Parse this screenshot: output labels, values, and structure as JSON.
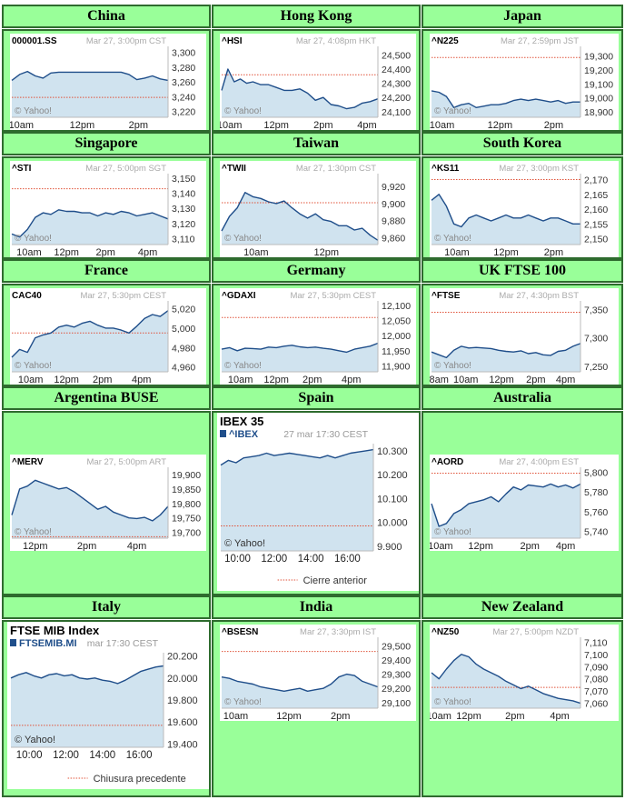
{
  "charts": [
    {
      "title": "China",
      "symbol": "000001.SS",
      "stamp": "Mar 27, 3:00pm CST",
      "ticks": [
        "3,300",
        "3,280",
        "3,260",
        "3,240",
        "3,220"
      ],
      "tickv": [
        3300,
        3280,
        3260,
        3240,
        3220
      ],
      "ylim": [
        3212,
        3308
      ],
      "prev": 3239,
      "xlabels": [
        "10am",
        "12pm",
        "2pm"
      ],
      "xpos": [
        0.06,
        0.45,
        0.81
      ],
      "chart_data": {
        "type": "line",
        "x": [
          0,
          0.05,
          0.1,
          0.15,
          0.2,
          0.25,
          0.3,
          0.35,
          0.4,
          0.45,
          0.5,
          0.55,
          0.6,
          0.65,
          0.7,
          0.75,
          0.8,
          0.85,
          0.9,
          0.95,
          1
        ],
        "values": [
          3262,
          3270,
          3274,
          3268,
          3265,
          3272,
          3273,
          3273,
          3273,
          3273,
          3273,
          3273,
          3273,
          3273,
          3273,
          3270,
          3263,
          3265,
          3268,
          3264,
          3262
        ]
      }
    },
    {
      "title": "Hong Kong",
      "symbol": "^HSI",
      "stamp": "Mar 27, 4:08pm HKT",
      "ticks": [
        "24,500",
        "24,400",
        "24,300",
        "24,200",
        "24,100"
      ],
      "tickv": [
        24500,
        24400,
        24300,
        24200,
        24100
      ],
      "ylim": [
        24060,
        24560
      ],
      "prev": 24360,
      "xlabels": [
        "10am",
        "12pm",
        "2pm",
        "4pm"
      ],
      "xpos": [
        0.05,
        0.35,
        0.65,
        0.93
      ],
      "chart_data": {
        "type": "line",
        "x": [
          0,
          0.04,
          0.08,
          0.12,
          0.16,
          0.2,
          0.25,
          0.3,
          0.35,
          0.4,
          0.45,
          0.5,
          0.55,
          0.6,
          0.65,
          0.7,
          0.75,
          0.8,
          0.85,
          0.9,
          0.95,
          1
        ],
        "values": [
          24250,
          24400,
          24310,
          24330,
          24300,
          24310,
          24290,
          24290,
          24270,
          24250,
          24250,
          24260,
          24230,
          24180,
          24200,
          24150,
          24140,
          24120,
          24130,
          24160,
          24170,
          24190
        ]
      }
    },
    {
      "title": "Japan",
      "symbol": "^N225",
      "stamp": "Mar 27, 2:59pm JST",
      "ticks": [
        "19,300",
        "19,200",
        "19,100",
        "19,000",
        "18,900"
      ],
      "tickv": [
        19300,
        19200,
        19100,
        19000,
        18900
      ],
      "ylim": [
        18860,
        19370
      ],
      "prev": 19290,
      "xlabels": [
        "10am",
        "12pm",
        "2pm"
      ],
      "xpos": [
        0.07,
        0.46,
        0.82
      ],
      "chart_data": {
        "type": "line",
        "x": [
          0,
          0.05,
          0.1,
          0.15,
          0.2,
          0.25,
          0.3,
          0.35,
          0.4,
          0.45,
          0.5,
          0.55,
          0.6,
          0.65,
          0.7,
          0.75,
          0.8,
          0.85,
          0.9,
          0.95,
          1
        ],
        "values": [
          19050,
          19040,
          19010,
          18930,
          18950,
          18960,
          18930,
          18940,
          18950,
          18950,
          18960,
          18980,
          18990,
          18980,
          18990,
          18980,
          18970,
          18980,
          18960,
          18970,
          18970
        ]
      }
    },
    {
      "title": "Singapore",
      "symbol": "^STI",
      "stamp": "Mar 27, 5:00pm SGT",
      "ticks": [
        "3,150",
        "3,140",
        "3,130",
        "3,120",
        "3,110"
      ],
      "tickv": [
        3150,
        3140,
        3130,
        3120,
        3110
      ],
      "ylim": [
        3106,
        3153
      ],
      "prev": 3143,
      "xlabels": [
        "10am",
        "12pm",
        "2pm",
        "4pm"
      ],
      "xpos": [
        0.11,
        0.35,
        0.6,
        0.87
      ],
      "chart_data": {
        "type": "line",
        "x": [
          0,
          0.05,
          0.1,
          0.15,
          0.2,
          0.25,
          0.3,
          0.35,
          0.4,
          0.45,
          0.5,
          0.55,
          0.6,
          0.65,
          0.7,
          0.75,
          0.8,
          0.85,
          0.9,
          0.95,
          1
        ],
        "values": [
          3113,
          3111,
          3116,
          3124,
          3127,
          3126,
          3129,
          3128,
          3128,
          3127,
          3127,
          3125,
          3127,
          3126,
          3128,
          3127,
          3125,
          3126,
          3127,
          3125,
          3123
        ]
      }
    },
    {
      "title": "Taiwan",
      "symbol": "^TWII",
      "stamp": "Mar 27, 1:30pm CST",
      "ticks": [
        "9,920",
        "9,900",
        "9,880",
        "9,860"
      ],
      "tickv": [
        9920,
        9900,
        9880,
        9860
      ],
      "ylim": [
        9852,
        9935
      ],
      "prev": 9901,
      "xlabels": [
        "10am",
        "12pm"
      ],
      "xpos": [
        0.22,
        0.67
      ],
      "chart_data": {
        "type": "line",
        "x": [
          0,
          0.05,
          0.1,
          0.15,
          0.2,
          0.25,
          0.3,
          0.35,
          0.4,
          0.45,
          0.5,
          0.55,
          0.6,
          0.65,
          0.7,
          0.75,
          0.8,
          0.85,
          0.9,
          0.95,
          1
        ],
        "values": [
          9868,
          9885,
          9895,
          9913,
          9908,
          9906,
          9902,
          9900,
          9903,
          9895,
          9888,
          9883,
          9888,
          9881,
          9879,
          9874,
          9874,
          9869,
          9871,
          9863,
          9857
        ]
      }
    },
    {
      "title": "South Korea",
      "symbol": "^KS11",
      "stamp": "Mar 27, 3:00pm KST",
      "ticks": [
        "2,170",
        "2,165",
        "2,160",
        "2,155",
        "2,150"
      ],
      "tickv": [
        2170,
        2165,
        2160,
        2155,
        2150
      ],
      "ylim": [
        2148,
        2172
      ],
      "prev": 2170,
      "xlabels": [
        "10am",
        "12pm",
        "2pm"
      ],
      "xpos": [
        0.17,
        0.5,
        0.82
      ],
      "chart_data": {
        "type": "line",
        "x": [
          0,
          0.05,
          0.1,
          0.15,
          0.2,
          0.25,
          0.3,
          0.35,
          0.4,
          0.45,
          0.5,
          0.55,
          0.6,
          0.65,
          0.7,
          0.75,
          0.8,
          0.85,
          0.9,
          0.95,
          1
        ],
        "values": [
          2163,
          2165,
          2161,
          2155,
          2154,
          2157,
          2158,
          2157,
          2156,
          2157,
          2158,
          2157,
          2157,
          2158,
          2157,
          2156,
          2157,
          2157,
          2156,
          2155,
          2155
        ]
      }
    },
    {
      "title": "France",
      "symbol": "CAC40",
      "stamp": "Mar 27, 5:30pm CEST",
      "ticks": [
        "5,020",
        "5,000",
        "4,980",
        "4,960"
      ],
      "tickv": [
        5020,
        5000,
        4980,
        4960
      ],
      "ylim": [
        4955,
        5028
      ],
      "prev": 4995,
      "xlabels": [
        "10am",
        "12pm",
        "2pm",
        "4pm"
      ],
      "xpos": [
        0.12,
        0.35,
        0.58,
        0.83
      ],
      "chart_data": {
        "type": "line",
        "x": [
          0,
          0.05,
          0.1,
          0.15,
          0.2,
          0.25,
          0.3,
          0.35,
          0.4,
          0.45,
          0.5,
          0.55,
          0.6,
          0.65,
          0.7,
          0.75,
          0.8,
          0.85,
          0.9,
          0.95,
          1
        ],
        "values": [
          4970,
          4978,
          4975,
          4990,
          4993,
          4995,
          5001,
          5003,
          5001,
          5005,
          5007,
          5003,
          5000,
          5000,
          4998,
          4995,
          5002,
          5010,
          5014,
          5012,
          5018
        ]
      }
    },
    {
      "title": "Germany",
      "symbol": "^GDAXI",
      "stamp": "Mar 27, 5:30pm CEST",
      "ticks": [
        "12,100",
        "12,050",
        "12,000",
        "11,950",
        "11,900"
      ],
      "tickv": [
        12100,
        12050,
        12000,
        11950,
        11900
      ],
      "ylim": [
        11880,
        12115
      ],
      "prev": 12060,
      "xlabels": [
        "10am",
        "12pm",
        "2pm",
        "4pm"
      ],
      "xpos": [
        0.12,
        0.35,
        0.58,
        0.83
      ],
      "chart_data": {
        "type": "line",
        "x": [
          0,
          0.05,
          0.1,
          0.15,
          0.2,
          0.25,
          0.3,
          0.35,
          0.4,
          0.45,
          0.5,
          0.55,
          0.6,
          0.65,
          0.7,
          0.75,
          0.8,
          0.85,
          0.9,
          0.95,
          1
        ],
        "values": [
          11955,
          11960,
          11950,
          11958,
          11957,
          11955,
          11962,
          11960,
          11965,
          11968,
          11963,
          11960,
          11962,
          11958,
          11955,
          11950,
          11945,
          11955,
          11960,
          11965,
          11975
        ]
      }
    },
    {
      "title": "UK FTSE 100",
      "symbol": "^FTSE",
      "stamp": "Mar 27, 4:30pm BST",
      "ticks": [
        "7,350",
        "7,300",
        "7,250"
      ],
      "tickv": [
        7350,
        7300,
        7250
      ],
      "ylim": [
        7240,
        7365
      ],
      "prev": 7345,
      "xlabels": [
        "8am",
        "10am",
        "12pm",
        "2pm",
        "4pm"
      ],
      "xpos": [
        0.05,
        0.23,
        0.47,
        0.7,
        0.9
      ],
      "chart_data": {
        "type": "line",
        "x": [
          0,
          0.05,
          0.1,
          0.15,
          0.2,
          0.25,
          0.3,
          0.35,
          0.4,
          0.45,
          0.5,
          0.55,
          0.6,
          0.65,
          0.7,
          0.75,
          0.8,
          0.85,
          0.9,
          0.95,
          1
        ],
        "values": [
          7275,
          7270,
          7265,
          7278,
          7285,
          7282,
          7283,
          7282,
          7281,
          7278,
          7276,
          7275,
          7277,
          7272,
          7274,
          7270,
          7269,
          7276,
          7278,
          7285,
          7290
        ]
      }
    },
    {
      "title": "Argentina BUSE",
      "symbol": "^MERV",
      "stamp": "Mar 27, 5:00pm ART",
      "ticks": [
        "19,900",
        "19,850",
        "19,800",
        "19,750",
        "19,700"
      ],
      "tickv": [
        19900,
        19850,
        19800,
        19750,
        19700
      ],
      "ylim": [
        19680,
        19925
      ],
      "prev": 19685,
      "xlabels": [
        "12pm",
        "2pm",
        "4pm"
      ],
      "xpos": [
        0.15,
        0.48,
        0.8
      ],
      "chart_data": {
        "type": "line",
        "x": [
          0,
          0.05,
          0.1,
          0.15,
          0.2,
          0.25,
          0.3,
          0.35,
          0.4,
          0.45,
          0.5,
          0.55,
          0.6,
          0.65,
          0.7,
          0.75,
          0.8,
          0.85,
          0.9,
          0.95,
          1
        ],
        "values": [
          19760,
          19850,
          19860,
          19880,
          19870,
          19860,
          19850,
          19855,
          19840,
          19820,
          19800,
          19780,
          19790,
          19770,
          19760,
          19750,
          19748,
          19752,
          19740,
          19760,
          19790
        ]
      }
    },
    {
      "title": "Spain",
      "symbol": "IBEX 35",
      "ticker": "^IBEX",
      "stamp": "27 mar 17:30 CEST",
      "ticks": [
        "10.300",
        "10.200",
        "10.100",
        "10.000",
        "9.900"
      ],
      "tickv": [
        10300,
        10200,
        10100,
        10000,
        9900
      ],
      "ylim": [
        9880,
        10330
      ],
      "prev": 9985,
      "xlabels": [
        "10:00",
        "12:00",
        "14:00",
        "16:00"
      ],
      "xpos": [
        0.11,
        0.35,
        0.59,
        0.83
      ],
      "legend": "Cierre anterior",
      "chart_data": {
        "type": "line",
        "x": [
          0,
          0.05,
          0.1,
          0.15,
          0.2,
          0.25,
          0.3,
          0.35,
          0.4,
          0.45,
          0.5,
          0.55,
          0.6,
          0.65,
          0.7,
          0.75,
          0.8,
          0.85,
          0.9,
          0.95,
          1
        ],
        "values": [
          10240,
          10260,
          10250,
          10270,
          10275,
          10280,
          10290,
          10280,
          10285,
          10290,
          10285,
          10280,
          10275,
          10270,
          10280,
          10270,
          10280,
          10290,
          10295,
          10300,
          10305
        ]
      }
    },
    {
      "title": "Australia",
      "symbol": "^AORD",
      "stamp": "Mar 27, 4:00pm EST",
      "ticks": [
        "5,800",
        "5,780",
        "5,760",
        "5,740"
      ],
      "tickv": [
        5800,
        5780,
        5760,
        5740
      ],
      "ylim": [
        5733,
        5805
      ],
      "prev": 5799,
      "xlabels": [
        "10am",
        "12pm",
        "2pm",
        "4pm"
      ],
      "xpos": [
        0.06,
        0.33,
        0.66,
        0.9
      ],
      "chart_data": {
        "type": "line",
        "x": [
          0,
          0.05,
          0.1,
          0.15,
          0.2,
          0.25,
          0.3,
          0.35,
          0.4,
          0.45,
          0.5,
          0.55,
          0.6,
          0.65,
          0.7,
          0.75,
          0.8,
          0.85,
          0.9,
          0.95,
          1
        ],
        "values": [
          5768,
          5745,
          5748,
          5758,
          5762,
          5768,
          5770,
          5772,
          5775,
          5770,
          5778,
          5785,
          5782,
          5787,
          5786,
          5785,
          5788,
          5785,
          5787,
          5784,
          5788
        ]
      }
    },
    {
      "title": "Italy",
      "symbol": "FTSE MIB Index",
      "ticker": "FTSEMIB.MI",
      "stamp": "mar 17:30 CEST",
      "ticks": [
        "20.200",
        "20.000",
        "19.800",
        "19.600",
        "19.400"
      ],
      "tickv": [
        20200,
        20000,
        19800,
        19600,
        19400
      ],
      "ylim": [
        19370,
        20230
      ],
      "prev": 19570,
      "xlabels": [
        "10:00",
        "12:00",
        "14:00",
        "16:00"
      ],
      "xpos": [
        0.12,
        0.36,
        0.6,
        0.84
      ],
      "legend": "Chiusura precedente",
      "chart_data": {
        "type": "line",
        "x": [
          0,
          0.05,
          0.1,
          0.15,
          0.2,
          0.25,
          0.3,
          0.35,
          0.4,
          0.45,
          0.5,
          0.55,
          0.6,
          0.65,
          0.7,
          0.75,
          0.8,
          0.85,
          0.9,
          0.95,
          1
        ],
        "values": [
          20000,
          20030,
          20050,
          20020,
          20000,
          20030,
          20040,
          20020,
          20030,
          20000,
          19990,
          20000,
          19980,
          19970,
          19950,
          19980,
          20020,
          20060,
          20080,
          20100,
          20110
        ]
      }
    },
    {
      "title": "India",
      "symbol": "^BSESN",
      "stamp": "Mar 27, 3:30pm IST",
      "ticks": [
        "29,500",
        "29,400",
        "29,300",
        "29,200",
        "29,100"
      ],
      "tickv": [
        29500,
        29400,
        29300,
        29200,
        29100
      ],
      "ylim": [
        29060,
        29560
      ],
      "prev": 29460,
      "xlabels": [
        "10am",
        "12pm",
        "2pm"
      ],
      "xpos": [
        0.09,
        0.43,
        0.76
      ],
      "chart_data": {
        "type": "line",
        "x": [
          0,
          0.05,
          0.1,
          0.15,
          0.2,
          0.25,
          0.3,
          0.35,
          0.4,
          0.45,
          0.5,
          0.55,
          0.6,
          0.65,
          0.7,
          0.75,
          0.8,
          0.85,
          0.9,
          0.95,
          1
        ],
        "values": [
          29280,
          29270,
          29250,
          29240,
          29230,
          29210,
          29200,
          29190,
          29180,
          29190,
          29200,
          29180,
          29190,
          29200,
          29230,
          29280,
          29300,
          29290,
          29250,
          29230,
          29210
        ]
      }
    },
    {
      "title": "New Zealand",
      "symbol": "^NZ50",
      "stamp": "Mar 27, 5:00pm NZDT",
      "ticks": [
        "7,110",
        "7,100",
        "7,090",
        "7,080",
        "7,070",
        "7,060"
      ],
      "tickv": [
        7110,
        7100,
        7090,
        7080,
        7070,
        7060
      ],
      "ylim": [
        7056,
        7114
      ],
      "prev": 7073,
      "xlabels": [
        "10am",
        "12pm",
        "2pm",
        "4pm"
      ],
      "xpos": [
        0.05,
        0.25,
        0.56,
        0.86
      ],
      "chart_data": {
        "type": "line",
        "x": [
          0,
          0.05,
          0.1,
          0.15,
          0.2,
          0.25,
          0.3,
          0.35,
          0.4,
          0.45,
          0.5,
          0.55,
          0.6,
          0.65,
          0.7,
          0.75,
          0.8,
          0.85,
          0.9,
          0.95,
          1
        ],
        "values": [
          7085,
          7080,
          7088,
          7095,
          7100,
          7098,
          7092,
          7088,
          7085,
          7082,
          7078,
          7075,
          7072,
          7074,
          7071,
          7068,
          7066,
          7064,
          7063,
          7062,
          7060
        ]
      }
    }
  ],
  "watermark": "© Yahoo!",
  "colors": {
    "line": "#1f4e8a",
    "fill": "#d0e3ef",
    "prev": "#e0533a",
    "header": "#99ff99",
    "border": "#2e6b2e"
  }
}
